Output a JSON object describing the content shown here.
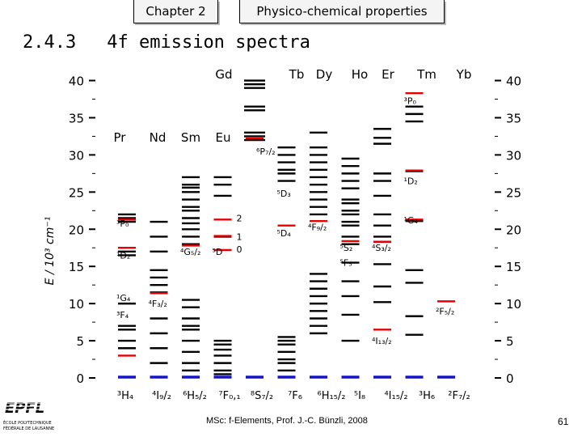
{
  "header": {
    "tab1": "Chapter 2",
    "tab2": "Physico-chemical properties",
    "section_number": "2.4.3",
    "section_title": "4f emission spectra"
  },
  "footer": {
    "credit": "MSc: f-Elements,  Prof. J.-C. Bünzli, 2008",
    "page": "61"
  },
  "logo": {
    "lines": [
      "ÉCOLE POLYTECHNIQUE",
      "FÉDÉRALE DE LAUSANNE"
    ]
  },
  "colors": {
    "red": "#e60000",
    "blue": "#1414c8",
    "black": "#000000"
  },
  "chart_data": {
    "type": "energy-level-diagram",
    "ylabel": "E / 10³ cm⁻¹",
    "ylim": [
      0,
      42
    ],
    "yticks": [
      0,
      5,
      10,
      15,
      20,
      25,
      30,
      35,
      40
    ],
    "elements_top": [
      {
        "label": "Pr",
        "x": 3
      },
      {
        "label": "Nd",
        "x": 4
      },
      {
        "label": "Sm",
        "x": 5
      },
      {
        "label": "Eu",
        "x": 6
      },
      {
        "label": "Gd",
        "x": 7
      },
      {
        "label": "Tb",
        "x": 9
      },
      {
        "label": "Dy",
        "x": 10
      },
      {
        "label": "Ho",
        "x": 11
      },
      {
        "label": "Er",
        "x": 12
      },
      {
        "label": "Tm",
        "x": 13
      },
      {
        "label": "Yb",
        "x": 14
      }
    ],
    "ground_states": [
      {
        "text": "³H₄",
        "x": 1
      },
      {
        "text": "⁴I₉/₂",
        "x": 2
      },
      {
        "text": "⁶H₅/₂",
        "x": 3
      },
      {
        "text": "⁷F₀,₁",
        "x": 4
      },
      {
        "text": "⁸S₇/₂",
        "x": 5
      },
      {
        "text": "⁷F₆",
        "x": 6
      },
      {
        "text": "⁶H₁₅/₂",
        "x": 7
      },
      {
        "text": "⁵I₈",
        "x": 8
      },
      {
        "text": "⁴I₁₅/₂",
        "x": 9
      },
      {
        "text": "³H₆",
        "x": 10
      },
      {
        "text": "²F₇/₂",
        "x": 11
      }
    ],
    "series": [
      {
        "ion": "Pr",
        "column": 1,
        "black": [
          4,
          5,
          6.5,
          7,
          10,
          16.5,
          17,
          21,
          21.5,
          22
        ],
        "red": [
          3,
          17.5,
          21.3
        ],
        "blue": [
          0
        ],
        "labels": [
          {
            "text": "³P₀",
            "y": 20.8
          },
          {
            "text": "¹D₂",
            "y": 16.5
          },
          {
            "text": "¹G₄",
            "y": 10.8
          },
          {
            "text": "³F₄",
            "y": 8.5
          }
        ]
      },
      {
        "ion": "Nd",
        "column": 2,
        "black": [
          2,
          4,
          6,
          8,
          11.5,
          12.5,
          13.5,
          14.5,
          17,
          19,
          21
        ],
        "red": [
          11.4
        ],
        "blue": [
          0
        ],
        "labels": [
          {
            "text": "⁴F₃/₂",
            "y": 10
          }
        ]
      },
      {
        "ion": "Sm",
        "column": 3,
        "black": [
          1,
          2,
          3.5,
          5,
          6.5,
          7,
          8,
          9.5,
          10.5,
          18,
          19,
          20,
          20.8,
          21.5,
          22.5,
          23,
          24,
          25,
          25.6,
          26,
          27
        ],
        "red": [
          17.8
        ],
        "blue": [
          0
        ],
        "labels": [
          {
            "text": "⁴G₅/₂",
            "y": 17
          }
        ]
      },
      {
        "ion": "Eu",
        "column": 4,
        "black": [
          0.5,
          1,
          2,
          3,
          3.8,
          4.5,
          5,
          19,
          24.5,
          26,
          27
        ],
        "red": [
          17.2,
          19.1,
          21.3
        ],
        "blue": [
          0
        ],
        "labels": [
          {
            "text": "⁵D",
            "y": 17
          }
        ]
      },
      {
        "ion": "Gd",
        "column": 5,
        "black": [
          32,
          32.5,
          33,
          36,
          36.5,
          39,
          39.5,
          40
        ],
        "red": [
          32.2
        ],
        "blue": [
          0
        ],
        "labels": []
      },
      {
        "ion": "Tb",
        "column": 6,
        "black": [
          1,
          2,
          2.5,
          3.5,
          4.5,
          5,
          5.5,
          26.5,
          27.5,
          28,
          29,
          30,
          31
        ],
        "red": [
          20.5
        ],
        "blue": [
          0
        ],
        "labels": []
      },
      {
        "ion": "Dy",
        "column": 7,
        "black": [
          6,
          7,
          8,
          9,
          10,
          11,
          12,
          13,
          14,
          22,
          23,
          24,
          25,
          26,
          27,
          28,
          29,
          30,
          31,
          33
        ],
        "red": [
          21.1
        ],
        "blue": [
          0
        ],
        "labels": [
          {
            "text": "⁴F₉/₂",
            "y": 20.3
          }
        ]
      },
      {
        "ion": "Ho",
        "column": 8,
        "black": [
          5,
          8.5,
          11,
          13,
          15.5,
          18,
          19,
          20.5,
          21,
          22,
          22.5,
          23.5,
          24,
          25.5,
          26.5,
          27.5,
          28.5,
          29.5
        ],
        "red": [
          18.4
        ],
        "blue": [
          0
        ],
        "labels": [
          {
            "text": "⁵S₂",
            "y": 17.5
          },
          {
            "text": "⁵F₅",
            "y": 15.5
          }
        ]
      },
      {
        "ion": "Er",
        "column": 9,
        "black": [
          10.2,
          12.3,
          15.3,
          18.3,
          19,
          20.5,
          22,
          24.5,
          26.5,
          27.5,
          31.5,
          32.3,
          33.5
        ],
        "red": [
          6.5,
          18.3
        ],
        "blue": [
          0
        ],
        "labels": [
          {
            "text": "⁴S₃/₂",
            "y": 17.5
          },
          {
            "text": "⁴I₁₃/₂",
            "y": 5
          }
        ]
      },
      {
        "ion": "Tm",
        "column": 10,
        "black": [
          5.8,
          8.3,
          12.8,
          14.5,
          21.1,
          27.8,
          34.5,
          35.5,
          36.5
        ],
        "red": [
          21.3,
          27.9,
          38.3
        ],
        "blue": [
          0
        ],
        "labels": [
          {
            "text": "³P₀",
            "y": 37.3
          },
          {
            "text": "¹D₂",
            "y": 26.5
          },
          {
            "text": "¹G₄",
            "y": 21.2
          }
        ]
      },
      {
        "ion": "Yb",
        "column": 11,
        "black": [],
        "red": [
          10.3
        ],
        "blue": [
          0
        ],
        "labels": [
          {
            "text": "²F₅/₂",
            "y": 9
          }
        ]
      }
    ],
    "eu_side_labels": [
      {
        "text": "2",
        "y": 21.5
      },
      {
        "text": "1",
        "y": 19
      },
      {
        "text": "0",
        "y": 17.3
      }
    ],
    "tb_label": {
      "text": "⁵D₄",
      "y": 19.5
    },
    "tb_label2": {
      "text": "⁵D₃",
      "y": 24.8
    },
    "gd_label": {
      "text": "⁶P₇/₂",
      "y": 30.5
    }
  }
}
